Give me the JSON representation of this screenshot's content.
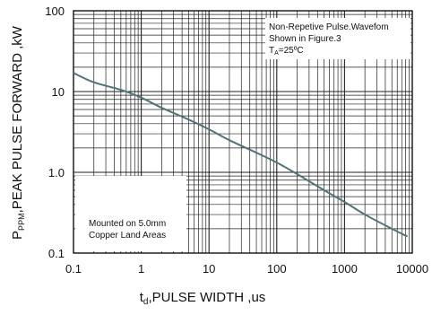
{
  "chart_data": {
    "type": "line",
    "x_scale": "log",
    "y_scale": "log",
    "xlim": [
      0.1,
      10000
    ],
    "ylim": [
      0.1,
      100
    ],
    "x_ticks": [
      "0.1",
      "1",
      "10",
      "100",
      "1000",
      "10000"
    ],
    "y_ticks": [
      "100",
      "10",
      "1.0",
      "0.1"
    ],
    "xlabel": {
      "main": "t",
      "sub": "d",
      "rest": ",PULSE WIDTH ,us"
    },
    "ylabel": {
      "main": "P",
      "sub": "PPM",
      "rest": ",PEAK PULSE  FORWARD ,kW"
    },
    "grid": true,
    "series": [
      {
        "color": "#4f7478",
        "x": [
          0.1,
          0.2,
          0.5,
          1,
          2,
          5,
          10,
          20,
          50,
          100,
          200,
          500,
          1000,
          2000,
          5000,
          8500
        ],
        "y": [
          17,
          13,
          10.5,
          8.4,
          6.3,
          4.5,
          3.4,
          2.5,
          1.75,
          1.32,
          0.95,
          0.6,
          0.43,
          0.3,
          0.2,
          0.16
        ]
      }
    ],
    "annotations": {
      "waveform": {
        "line1": "Non-Repetive  Pulse.Wavefom",
        "line2": "Shown in Figure.3",
        "line3_main": "T",
        "line3_sub": "A",
        "line3_rest": "=25ºC"
      },
      "mounting": {
        "line1": "Mounted on 5.0mm",
        "line2": "Copper Land Areas"
      }
    }
  }
}
